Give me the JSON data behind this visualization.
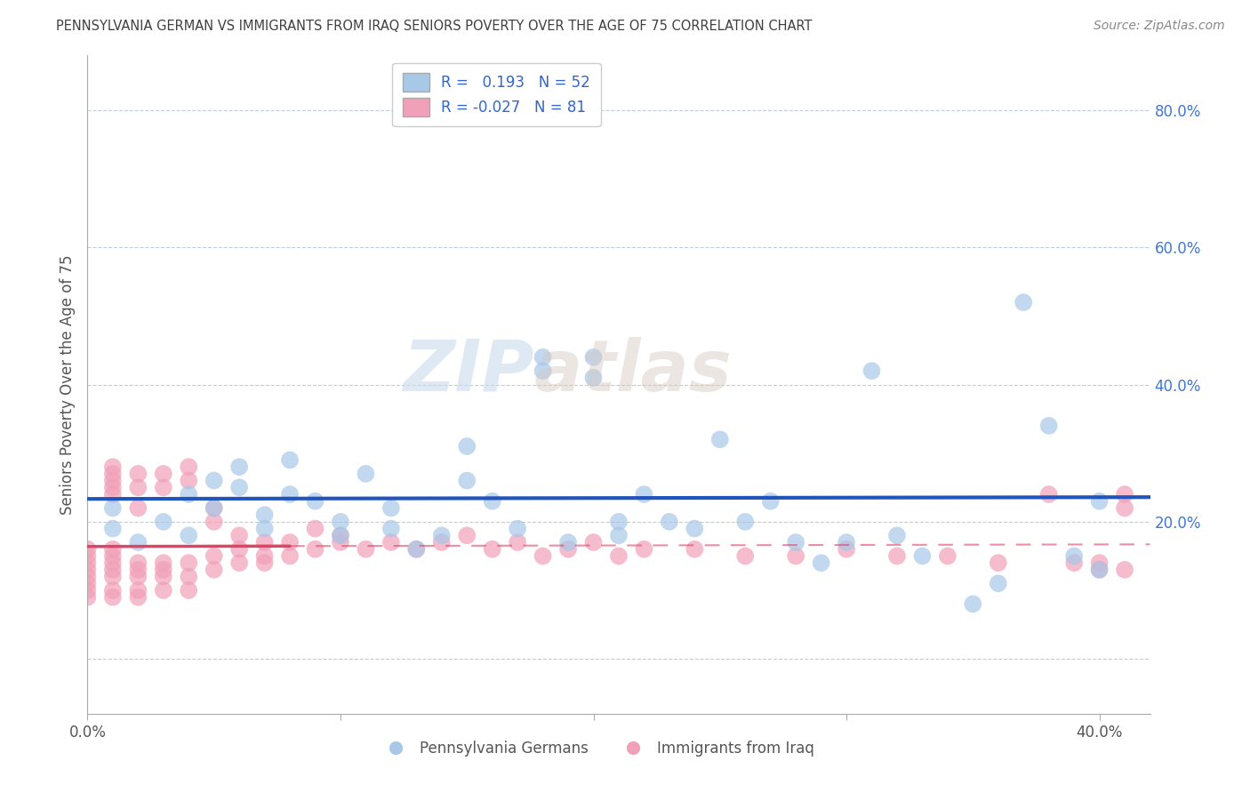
{
  "title": "PENNSYLVANIA GERMAN VS IMMIGRANTS FROM IRAQ SENIORS POVERTY OVER THE AGE OF 75 CORRELATION CHART",
  "source": "Source: ZipAtlas.com",
  "ylabel": "Seniors Poverty Over the Age of 75",
  "xlim": [
    0.0,
    0.42
  ],
  "ylim": [
    -0.08,
    0.88
  ],
  "xticks": [
    0.0,
    0.1,
    0.2,
    0.3,
    0.4
  ],
  "xticklabels": [
    "0.0%",
    "",
    "",
    "",
    "40.0%"
  ],
  "yticks": [
    0.0,
    0.2,
    0.4,
    0.6,
    0.8
  ],
  "yticklabels": [
    "",
    "20.0%",
    "40.0%",
    "60.0%",
    "80.0%"
  ],
  "legend_labels": [
    "Pennsylvania Germans",
    "Immigrants from Iraq"
  ],
  "r_blue": 0.193,
  "n_blue": 52,
  "r_pink": -0.027,
  "n_pink": 81,
  "blue_color": "#a8c8e8",
  "pink_color": "#f0a0b8",
  "blue_line_color": "#2255bb",
  "pink_line_color": "#dd4466",
  "pink_line_dash_color": "#f0a0b8",
  "background_color": "#ffffff",
  "grid_color": "#c0ccd8",
  "title_color": "#404040",
  "watermark_color": "#c8d8e8",
  "blue_scatter_x": [
    0.01,
    0.01,
    0.02,
    0.03,
    0.04,
    0.04,
    0.05,
    0.05,
    0.06,
    0.06,
    0.07,
    0.07,
    0.08,
    0.08,
    0.09,
    0.1,
    0.1,
    0.11,
    0.12,
    0.12,
    0.13,
    0.14,
    0.15,
    0.15,
    0.16,
    0.17,
    0.18,
    0.18,
    0.19,
    0.2,
    0.2,
    0.21,
    0.21,
    0.22,
    0.23,
    0.24,
    0.25,
    0.26,
    0.27,
    0.28,
    0.29,
    0.3,
    0.31,
    0.32,
    0.33,
    0.35,
    0.36,
    0.37,
    0.38,
    0.39,
    0.4,
    0.4
  ],
  "blue_scatter_y": [
    0.19,
    0.22,
    0.17,
    0.2,
    0.24,
    0.18,
    0.26,
    0.22,
    0.28,
    0.25,
    0.19,
    0.21,
    0.29,
    0.24,
    0.23,
    0.2,
    0.18,
    0.27,
    0.22,
    0.19,
    0.16,
    0.18,
    0.31,
    0.26,
    0.23,
    0.19,
    0.42,
    0.44,
    0.17,
    0.41,
    0.44,
    0.2,
    0.18,
    0.24,
    0.2,
    0.19,
    0.32,
    0.2,
    0.23,
    0.17,
    0.14,
    0.17,
    0.42,
    0.18,
    0.15,
    0.08,
    0.11,
    0.52,
    0.34,
    0.15,
    0.13,
    0.23
  ],
  "pink_scatter_x": [
    0.0,
    0.0,
    0.0,
    0.0,
    0.0,
    0.0,
    0.0,
    0.0,
    0.01,
    0.01,
    0.01,
    0.01,
    0.01,
    0.01,
    0.01,
    0.01,
    0.01,
    0.01,
    0.01,
    0.01,
    0.02,
    0.02,
    0.02,
    0.02,
    0.02,
    0.02,
    0.02,
    0.02,
    0.03,
    0.03,
    0.03,
    0.03,
    0.03,
    0.03,
    0.04,
    0.04,
    0.04,
    0.04,
    0.04,
    0.05,
    0.05,
    0.05,
    0.05,
    0.06,
    0.06,
    0.06,
    0.07,
    0.07,
    0.07,
    0.08,
    0.08,
    0.09,
    0.09,
    0.1,
    0.1,
    0.11,
    0.12,
    0.13,
    0.14,
    0.15,
    0.16,
    0.17,
    0.18,
    0.19,
    0.2,
    0.21,
    0.22,
    0.24,
    0.26,
    0.28,
    0.3,
    0.32,
    0.34,
    0.36,
    0.38,
    0.39,
    0.4,
    0.4,
    0.41,
    0.41,
    0.41
  ],
  "pink_scatter_y": [
    0.14,
    0.15,
    0.13,
    0.12,
    0.11,
    0.16,
    0.1,
    0.09,
    0.25,
    0.27,
    0.26,
    0.24,
    0.28,
    0.14,
    0.13,
    0.15,
    0.12,
    0.16,
    0.1,
    0.09,
    0.25,
    0.27,
    0.22,
    0.14,
    0.13,
    0.12,
    0.1,
    0.09,
    0.27,
    0.25,
    0.14,
    0.13,
    0.12,
    0.1,
    0.28,
    0.26,
    0.14,
    0.12,
    0.1,
    0.22,
    0.2,
    0.15,
    0.13,
    0.18,
    0.16,
    0.14,
    0.17,
    0.15,
    0.14,
    0.17,
    0.15,
    0.19,
    0.16,
    0.18,
    0.17,
    0.16,
    0.17,
    0.16,
    0.17,
    0.18,
    0.16,
    0.17,
    0.15,
    0.16,
    0.17,
    0.15,
    0.16,
    0.16,
    0.15,
    0.15,
    0.16,
    0.15,
    0.15,
    0.14,
    0.24,
    0.14,
    0.14,
    0.13,
    0.24,
    0.13,
    0.22
  ]
}
